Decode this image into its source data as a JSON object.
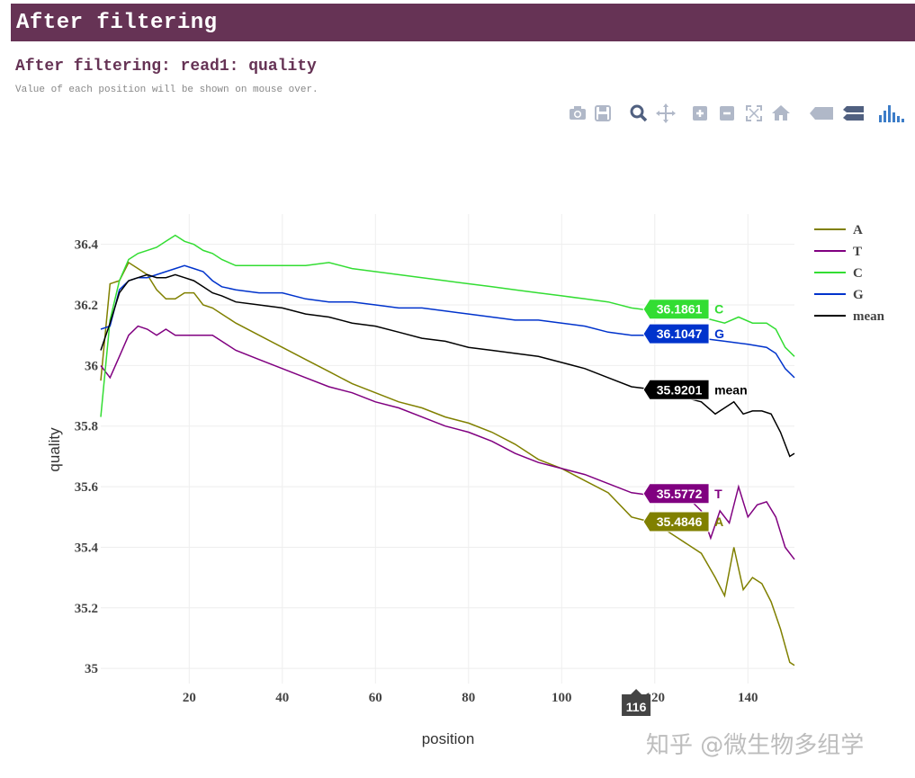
{
  "header": {
    "title": "After filtering"
  },
  "subheader": {
    "title": "After filtering: read1: quality",
    "note": "Value of each position will be shown on mouse over."
  },
  "modebar": {
    "icons": [
      "camera-icon",
      "save-icon",
      "zoom-icon",
      "pan-icon",
      "zoom-in-icon",
      "zoom-out-icon",
      "autoscale-icon",
      "reset-axes-icon",
      "hover-closest-icon",
      "hover-compare-icon",
      "plotly-logo-icon"
    ]
  },
  "watermark": "知乎 @微生物多组学",
  "chart_data": {
    "type": "line",
    "title": "",
    "xlabel": "position",
    "ylabel": "quality",
    "xlim": [
      1,
      150
    ],
    "ylim": [
      34.95,
      36.5
    ],
    "x_ticks": [
      20,
      40,
      60,
      80,
      100,
      120,
      140
    ],
    "y_ticks": [
      35,
      35.2,
      35.4,
      35.6,
      35.8,
      36,
      36.2,
      36.4
    ],
    "y_tick_labels": [
      "35",
      "35.2",
      "35.4",
      "35.6",
      "35.8",
      "36",
      "36.2",
      "36.4"
    ],
    "grid": true,
    "legend": "right",
    "series": [
      {
        "name": "A",
        "color": "#808000",
        "points": [
          [
            1,
            35.95
          ],
          [
            3,
            36.27
          ],
          [
            5,
            36.28
          ],
          [
            7,
            36.34
          ],
          [
            9,
            36.32
          ],
          [
            11,
            36.3
          ],
          [
            13,
            36.25
          ],
          [
            15,
            36.22
          ],
          [
            17,
            36.22
          ],
          [
            19,
            36.24
          ],
          [
            21,
            36.24
          ],
          [
            23,
            36.2
          ],
          [
            25,
            36.19
          ],
          [
            27,
            36.17
          ],
          [
            30,
            36.14
          ],
          [
            35,
            36.1
          ],
          [
            40,
            36.06
          ],
          [
            45,
            36.02
          ],
          [
            50,
            35.98
          ],
          [
            55,
            35.94
          ],
          [
            60,
            35.91
          ],
          [
            65,
            35.88
          ],
          [
            70,
            35.86
          ],
          [
            75,
            35.83
          ],
          [
            80,
            35.81
          ],
          [
            85,
            35.78
          ],
          [
            90,
            35.74
          ],
          [
            95,
            35.69
          ],
          [
            100,
            35.66
          ],
          [
            105,
            35.62
          ],
          [
            110,
            35.58
          ],
          [
            115,
            35.5
          ],
          [
            120,
            35.48
          ],
          [
            125,
            35.43
          ],
          [
            130,
            35.38
          ],
          [
            133,
            35.3
          ],
          [
            135,
            35.24
          ],
          [
            137,
            35.4
          ],
          [
            139,
            35.26
          ],
          [
            141,
            35.3
          ],
          [
            143,
            35.28
          ],
          [
            145,
            35.22
          ],
          [
            147,
            35.13
          ],
          [
            149,
            35.02
          ],
          [
            150,
            35.01
          ]
        ]
      },
      {
        "name": "T",
        "color": "#800080",
        "points": [
          [
            1,
            36.0
          ],
          [
            3,
            35.96
          ],
          [
            5,
            36.03
          ],
          [
            7,
            36.1
          ],
          [
            9,
            36.13
          ],
          [
            11,
            36.12
          ],
          [
            13,
            36.1
          ],
          [
            15,
            36.12
          ],
          [
            17,
            36.1
          ],
          [
            19,
            36.1
          ],
          [
            21,
            36.1
          ],
          [
            23,
            36.1
          ],
          [
            25,
            36.1
          ],
          [
            27,
            36.08
          ],
          [
            30,
            36.05
          ],
          [
            35,
            36.02
          ],
          [
            40,
            35.99
          ],
          [
            45,
            35.96
          ],
          [
            50,
            35.93
          ],
          [
            55,
            35.91
          ],
          [
            60,
            35.88
          ],
          [
            65,
            35.86
          ],
          [
            70,
            35.83
          ],
          [
            75,
            35.8
          ],
          [
            80,
            35.78
          ],
          [
            85,
            35.75
          ],
          [
            90,
            35.71
          ],
          [
            95,
            35.68
          ],
          [
            100,
            35.66
          ],
          [
            105,
            35.64
          ],
          [
            110,
            35.61
          ],
          [
            115,
            35.58
          ],
          [
            120,
            35.57
          ],
          [
            125,
            35.55
          ],
          [
            128,
            35.55
          ],
          [
            130,
            35.52
          ],
          [
            132,
            35.43
          ],
          [
            134,
            35.52
          ],
          [
            136,
            35.48
          ],
          [
            138,
            35.6
          ],
          [
            140,
            35.5
          ],
          [
            142,
            35.54
          ],
          [
            144,
            35.55
          ],
          [
            146,
            35.5
          ],
          [
            148,
            35.4
          ],
          [
            150,
            35.36
          ]
        ]
      },
      {
        "name": "C",
        "color": "#33dd33",
        "points": [
          [
            1,
            35.83
          ],
          [
            3,
            36.15
          ],
          [
            5,
            36.28
          ],
          [
            7,
            36.35
          ],
          [
            9,
            36.37
          ],
          [
            11,
            36.38
          ],
          [
            13,
            36.39
          ],
          [
            15,
            36.41
          ],
          [
            17,
            36.43
          ],
          [
            19,
            36.41
          ],
          [
            21,
            36.4
          ],
          [
            23,
            36.38
          ],
          [
            25,
            36.37
          ],
          [
            27,
            36.35
          ],
          [
            30,
            36.33
          ],
          [
            35,
            36.33
          ],
          [
            40,
            36.33
          ],
          [
            45,
            36.33
          ],
          [
            50,
            36.34
          ],
          [
            55,
            36.32
          ],
          [
            60,
            36.31
          ],
          [
            65,
            36.3
          ],
          [
            70,
            36.29
          ],
          [
            75,
            36.28
          ],
          [
            80,
            36.27
          ],
          [
            85,
            36.26
          ],
          [
            90,
            36.25
          ],
          [
            95,
            36.24
          ],
          [
            100,
            36.23
          ],
          [
            105,
            36.22
          ],
          [
            110,
            36.21
          ],
          [
            115,
            36.19
          ],
          [
            120,
            36.18
          ],
          [
            125,
            36.17
          ],
          [
            130,
            36.16
          ],
          [
            135,
            36.14
          ],
          [
            138,
            36.16
          ],
          [
            141,
            36.14
          ],
          [
            144,
            36.14
          ],
          [
            146,
            36.12
          ],
          [
            148,
            36.06
          ],
          [
            150,
            36.03
          ]
        ]
      },
      {
        "name": "G",
        "color": "#0033cc",
        "points": [
          [
            1,
            36.12
          ],
          [
            3,
            36.13
          ],
          [
            5,
            36.25
          ],
          [
            7,
            36.28
          ],
          [
            9,
            36.29
          ],
          [
            11,
            36.29
          ],
          [
            13,
            36.3
          ],
          [
            15,
            36.31
          ],
          [
            17,
            36.32
          ],
          [
            19,
            36.33
          ],
          [
            21,
            36.32
          ],
          [
            23,
            36.31
          ],
          [
            25,
            36.28
          ],
          [
            27,
            36.26
          ],
          [
            30,
            36.25
          ],
          [
            35,
            36.24
          ],
          [
            40,
            36.24
          ],
          [
            45,
            36.22
          ],
          [
            50,
            36.21
          ],
          [
            55,
            36.21
          ],
          [
            60,
            36.2
          ],
          [
            65,
            36.19
          ],
          [
            70,
            36.19
          ],
          [
            75,
            36.18
          ],
          [
            80,
            36.17
          ],
          [
            85,
            36.16
          ],
          [
            90,
            36.15
          ],
          [
            95,
            36.15
          ],
          [
            100,
            36.14
          ],
          [
            105,
            36.13
          ],
          [
            110,
            36.11
          ],
          [
            115,
            36.1
          ],
          [
            120,
            36.1
          ],
          [
            125,
            36.09
          ],
          [
            130,
            36.09
          ],
          [
            135,
            36.08
          ],
          [
            140,
            36.07
          ],
          [
            144,
            36.06
          ],
          [
            146,
            36.04
          ],
          [
            148,
            35.99
          ],
          [
            150,
            35.96
          ]
        ]
      },
      {
        "name": "mean",
        "color": "#000000",
        "points": [
          [
            1,
            36.05
          ],
          [
            3,
            36.14
          ],
          [
            5,
            36.24
          ],
          [
            7,
            36.28
          ],
          [
            9,
            36.29
          ],
          [
            11,
            36.3
          ],
          [
            13,
            36.29
          ],
          [
            15,
            36.29
          ],
          [
            17,
            36.3
          ],
          [
            19,
            36.29
          ],
          [
            21,
            36.28
          ],
          [
            23,
            36.26
          ],
          [
            25,
            36.24
          ],
          [
            27,
            36.23
          ],
          [
            30,
            36.21
          ],
          [
            35,
            36.2
          ],
          [
            40,
            36.19
          ],
          [
            45,
            36.17
          ],
          [
            50,
            36.16
          ],
          [
            55,
            36.14
          ],
          [
            60,
            36.13
          ],
          [
            65,
            36.11
          ],
          [
            70,
            36.09
          ],
          [
            75,
            36.08
          ],
          [
            80,
            36.06
          ],
          [
            85,
            36.05
          ],
          [
            90,
            36.04
          ],
          [
            95,
            36.03
          ],
          [
            100,
            36.01
          ],
          [
            105,
            35.99
          ],
          [
            110,
            35.96
          ],
          [
            115,
            35.93
          ],
          [
            120,
            35.92
          ],
          [
            125,
            35.9
          ],
          [
            130,
            35.88
          ],
          [
            133,
            35.84
          ],
          [
            135,
            35.86
          ],
          [
            137,
            35.88
          ],
          [
            139,
            35.84
          ],
          [
            141,
            35.85
          ],
          [
            143,
            35.85
          ],
          [
            145,
            35.84
          ],
          [
            147,
            35.78
          ],
          [
            149,
            35.7
          ],
          [
            150,
            35.71
          ]
        ]
      }
    ],
    "hover": {
      "x": 116,
      "x_label": "116",
      "labels": [
        {
          "series": "C",
          "value": "36.1861",
          "name": "C",
          "color": "#33dd33",
          "name_color": "#33dd33",
          "y": 36.1861
        },
        {
          "series": "G",
          "value": "36.1047",
          "name": "G",
          "color": "#0033cc",
          "name_color": "#0033cc",
          "y": 36.1047
        },
        {
          "series": "mean",
          "value": "35.9201",
          "name": "mean",
          "color": "#000000",
          "name_color": "#000000",
          "y": 35.9201
        },
        {
          "series": "T",
          "value": "35.5772",
          "name": "T",
          "color": "#800080",
          "name_color": "#800080",
          "y": 35.5772
        },
        {
          "series": "A",
          "value": "35.4846",
          "name": "A",
          "color": "#808000",
          "name_color": "#808000",
          "y": 35.4846
        }
      ]
    }
  }
}
